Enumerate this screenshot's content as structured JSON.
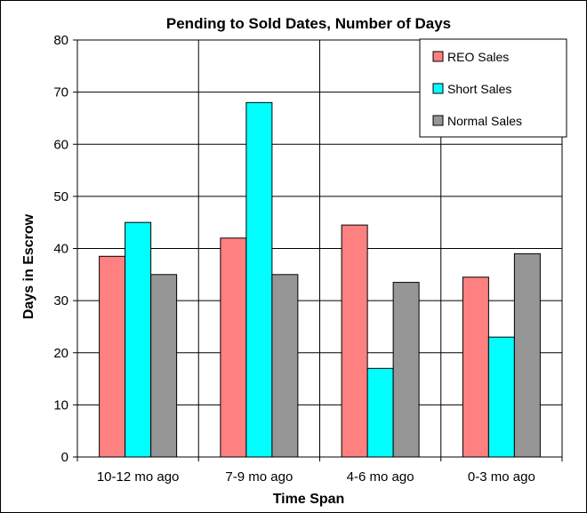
{
  "chart_data": {
    "type": "bar",
    "title": "Pending to Sold Dates, Number of Days",
    "xlabel": "Time Span",
    "ylabel": "Days in Escrow",
    "categories": [
      "10-12 mo ago",
      "7-9 mo ago",
      "4-6 mo ago",
      "0-3 mo ago"
    ],
    "series": [
      {
        "name": "REO Sales",
        "color": "#ff8080",
        "values": [
          38.5,
          42,
          44.5,
          34.5
        ]
      },
      {
        "name": "Short Sales",
        "color": "#00ffff",
        "values": [
          45,
          68,
          17,
          23
        ]
      },
      {
        "name": "Normal Sales",
        "color": "#969696",
        "values": [
          35,
          35,
          33.5,
          39
        ]
      }
    ],
    "ylim": [
      0,
      80
    ],
    "yticks": [
      0,
      10,
      20,
      30,
      40,
      50,
      60,
      70,
      80
    ],
    "grid": true,
    "legend_position": "top-right"
  }
}
